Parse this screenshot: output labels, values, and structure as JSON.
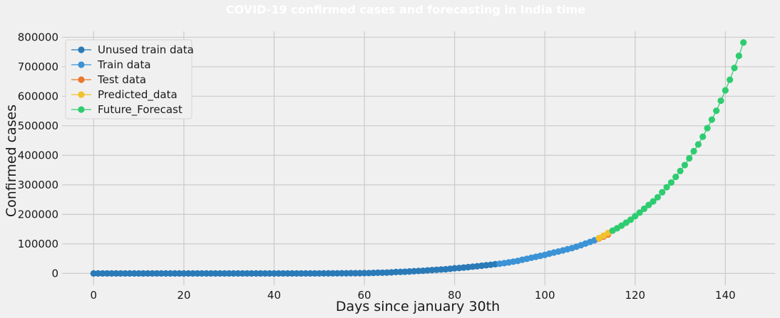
{
  "chart_data": {
    "type": "line",
    "title": "COVID-19 confirmed cases and forecasting in India time",
    "xlabel": "Days since january 30th",
    "ylabel": "Confirmed cases",
    "xlim": [
      -7,
      151
    ],
    "ylim": [
      -40000,
      820000
    ],
    "x_ticks": [
      0,
      20,
      40,
      60,
      80,
      100,
      120,
      140
    ],
    "y_ticks": [
      0,
      100000,
      200000,
      300000,
      400000,
      500000,
      600000,
      700000,
      800000
    ],
    "x_tick_labels": [
      "0",
      "20",
      "40",
      "60",
      "80",
      "100",
      "120",
      "140"
    ],
    "y_tick_labels": [
      "0",
      "100000",
      "200000",
      "300000",
      "400000",
      "500000",
      "600000",
      "700000",
      "800000"
    ],
    "grid": true,
    "legend_position": "top-left",
    "series": [
      {
        "name": "Unused train data",
        "color": "#2a7ab8",
        "x": [
          0,
          1,
          2,
          3,
          4,
          5,
          6,
          7,
          8,
          9,
          10,
          11,
          12,
          13,
          14,
          15,
          16,
          17,
          18,
          19,
          20,
          21,
          22,
          23,
          24,
          25,
          26,
          27,
          28,
          29,
          30,
          31,
          32,
          33,
          34,
          35,
          36,
          37,
          38,
          39,
          40,
          41,
          42,
          43,
          44,
          45,
          46,
          47,
          48,
          49,
          50,
          51,
          52,
          53,
          54,
          55,
          56,
          57,
          58,
          59,
          60,
          61,
          62,
          63,
          64,
          65,
          66,
          67,
          68,
          69,
          70,
          71,
          72,
          73,
          74,
          75,
          76,
          77,
          78,
          79,
          80,
          81,
          82,
          83,
          84,
          85,
          86,
          87,
          88,
          89
        ],
        "y": [
          1,
          1,
          2,
          3,
          3,
          3,
          3,
          3,
          3,
          3,
          3,
          3,
          3,
          3,
          3,
          3,
          3,
          3,
          3,
          3,
          3,
          3,
          3,
          3,
          3,
          3,
          3,
          3,
          3,
          3,
          3,
          3,
          5,
          6,
          28,
          29,
          31,
          34,
          39,
          43,
          56,
          62,
          73,
          82,
          102,
          113,
          119,
          142,
          156,
          194,
          244,
          330,
          396,
          499,
          536,
          657,
          727,
          887,
          987,
          1024,
          1251,
          1397,
          1998,
          2543,
          2567,
          3082,
          3588,
          4778,
          5311,
          5916,
          6725,
          7598,
          8446,
          9205,
          10453,
          11487,
          12322,
          13430,
          14352,
          15722,
          17615,
          18539,
          20080,
          21370,
          23077,
          24530,
          26283,
          27890,
          29451,
          31324
        ]
      },
      {
        "name": "Train data",
        "color": "#3b93d6",
        "x": [
          90,
          91,
          92,
          93,
          94,
          95,
          96,
          97,
          98,
          99,
          100,
          101,
          102,
          103,
          104,
          105,
          106,
          107,
          108,
          109,
          110,
          111
        ],
        "y": [
          33062,
          35043,
          37336,
          39980,
          42533,
          46437,
          49400,
          52987,
          56342,
          59695,
          62808,
          67161,
          70768,
          74292,
          78055,
          81997,
          85784,
          90648,
          95698,
          101139,
          106750,
          112359
        ]
      },
      {
        "name": "Test data",
        "color": "#e8792b",
        "x": [
          112,
          113,
          114
        ],
        "y": [
          118447,
          125101,
          131868
        ]
      },
      {
        "name": "Predicted_data",
        "color": "#f2c12e",
        "x": [
          112,
          113,
          114
        ],
        "y": [
          120000,
          128000,
          137000
        ]
      },
      {
        "name": "Future_Forecast",
        "color": "#2ecc71",
        "x": [
          115,
          116,
          117,
          118,
          119,
          120,
          121,
          122,
          123,
          124,
          125,
          126,
          127,
          128,
          129,
          130,
          131,
          132,
          133,
          134,
          135,
          136,
          137,
          138,
          139,
          140,
          141,
          142,
          143,
          144
        ],
        "y": [
          145000,
          153000,
          162000,
          172000,
          182000,
          194000,
          206000,
          219000,
          232000,
          244000,
          258000,
          275000,
          292000,
          308000,
          327000,
          347000,
          367000,
          390000,
          414000,
          437000,
          463000,
          492000,
          521000,
          551000,
          585000,
          620000,
          656000,
          696000,
          737000,
          782000
        ]
      }
    ]
  }
}
